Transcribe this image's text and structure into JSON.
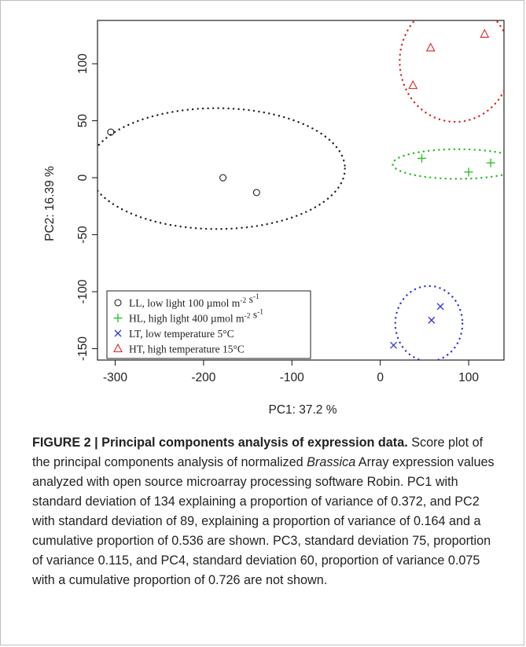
{
  "chart_data": {
    "type": "scatter",
    "title": "",
    "xlabel": "PC1: 37.2 %",
    "ylabel": "PC2: 16.39 %",
    "xlim": [
      -320,
      140
    ],
    "ylim": [
      -160,
      138
    ],
    "xticks": [
      -300,
      -200,
      -100,
      0,
      100
    ],
    "yticks": [
      -150,
      -100,
      -50,
      0,
      50,
      100
    ],
    "grid": false,
    "legend_position": "bottom-left",
    "series": [
      {
        "name": "LL, low light 100 µmol m-2 s-1",
        "legend_main": "LL, low light 100 µmol m",
        "legend_parts": [
          {
            "text": "LL, low light 100 µmol m",
            "sup": false
          },
          {
            "text": "-2",
            "sup": true
          },
          {
            "text": " s",
            "sup": false
          },
          {
            "text": "-1",
            "sup": true
          }
        ],
        "marker": "circle",
        "color": "#222222",
        "points": [
          [
            -305,
            40
          ],
          [
            -178,
            0
          ],
          [
            -140,
            -13
          ]
        ],
        "ellipse": {
          "cx": -185,
          "cy": 8,
          "rx": 145,
          "ry": 53,
          "color": "#222222"
        }
      },
      {
        "name": "HL, high light 400 µmol m-2 s-1",
        "legend_parts": [
          {
            "text": "HL, high light 400 µmol m",
            "sup": false
          },
          {
            "text": "-2",
            "sup": true
          },
          {
            "text": " s",
            "sup": false
          },
          {
            "text": "-1",
            "sup": true
          }
        ],
        "marker": "plus",
        "color": "#22bb22",
        "points": [
          [
            47,
            17
          ],
          [
            100,
            5
          ],
          [
            125,
            13
          ]
        ],
        "ellipse": {
          "cx": 88,
          "cy": 12,
          "rx": 74,
          "ry": 13,
          "color": "#22bb22"
        }
      },
      {
        "name": "LT, low temperature 5°C",
        "legend_parts": [
          {
            "text": "LT, low temperature 5°C",
            "sup": false
          }
        ],
        "marker": "x",
        "color": "#3333dd",
        "points": [
          [
            15,
            -147
          ],
          [
            58,
            -125
          ],
          [
            68,
            -113
          ]
        ],
        "ellipse": {
          "cx": 55,
          "cy": -128,
          "rx": 38,
          "ry": 33,
          "color": "#3333dd"
        }
      },
      {
        "name": "HT, high temperature 15°C",
        "legend_parts": [
          {
            "text": "HT, high temperature 15°C",
            "sup": false
          }
        ],
        "marker": "triangle",
        "color": "#dd2222",
        "points": [
          [
            37,
            81
          ],
          [
            57,
            114
          ],
          [
            118,
            126
          ]
        ],
        "ellipse": {
          "cx": 85,
          "cy": 102,
          "rx": 63,
          "ry": 53,
          "color": "#dd2222"
        }
      }
    ]
  },
  "caption": {
    "label": "FIGURE 2 | Principal components analysis of expression data.",
    "text_before": " Score plot of the principal components analysis of normalized ",
    "italic": "Brassica",
    "text_after": " Array expression values analyzed with open source microarray processing software Robin. PC1 with standard deviation of 134 explaining a proportion of variance of 0.372, and PC2 with standard deviation of 89, explaining a proportion of variance of 0.164 and a cumulative proportion of 0.536 are shown. PC3, standard deviation 75, proportion of variance 0.115, and PC4, standard deviation 60, proportion of variance 0.075 with a cumulative proportion of 0.726 are not shown."
  }
}
